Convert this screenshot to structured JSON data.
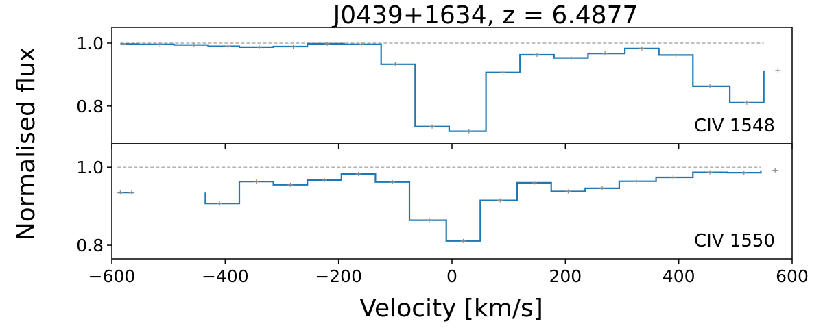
{
  "chart_data": {
    "type": "line",
    "title": "J0439+1634,   z = 6.4877",
    "xlabel": "Velocity [km/s]",
    "ylabel": "Normalised flux",
    "xlim": [
      -600,
      600
    ],
    "xticks": [
      "−600",
      "−400",
      "−200",
      "0",
      "200",
      "400",
      "600"
    ],
    "xtick_values": [
      -600,
      -400,
      -200,
      0,
      200,
      400,
      600
    ],
    "line_color": "#1f77b4",
    "error_color": "#8c8c8c",
    "reference_color": "#9a9a9a",
    "grid": false,
    "panels": [
      {
        "label": "CIV 1548",
        "ylim": [
          0.68,
          1.05
        ],
        "yticks": [
          "0.8",
          "1.0"
        ],
        "ytick_values": [
          0.8,
          1.0
        ],
        "reference_y": 1.0,
        "edges": [
          -585,
          -555,
          -490,
          -430,
          -375,
          -315,
          -255,
          -190,
          -125,
          -65,
          -5,
          60,
          120,
          180,
          240,
          305,
          365,
          425,
          490,
          550
        ],
        "x": [
          -580,
          -515,
          -455,
          -395,
          -340,
          -280,
          -220,
          -160,
          -100,
          -35,
          30,
          90,
          150,
          210,
          270,
          335,
          395,
          455,
          520,
          575
        ],
        "values": [
          0.997,
          0.996,
          0.994,
          0.99,
          0.987,
          0.989,
          0.998,
          0.996,
          0.933,
          0.735,
          0.72,
          0.907,
          0.963,
          0.953,
          0.967,
          0.983,
          0.962,
          0.863,
          0.811,
          0.913
        ]
      },
      {
        "label": "CIV 1550",
        "ylim": [
          0.765,
          1.06
        ],
        "yticks": [
          "0.8",
          "1.0"
        ],
        "ytick_values": [
          0.8,
          1.0
        ],
        "reference_y": 1.0,
        "edges": [
          -590,
          -560,
          -435,
          -375,
          -315,
          -255,
          -195,
          -135,
          -75,
          -10,
          50,
          115,
          175,
          235,
          295,
          360,
          425,
          485,
          545
        ],
        "x": [
          -585,
          -565,
          -410,
          -345,
          -285,
          -225,
          -165,
          -105,
          -40,
          20,
          85,
          145,
          205,
          265,
          325,
          390,
          455,
          515,
          570
        ],
        "values": [
          0.935,
          0.935,
          0.907,
          0.963,
          0.955,
          0.967,
          0.983,
          0.962,
          0.864,
          0.811,
          0.915,
          0.96,
          0.938,
          0.946,
          0.964,
          0.974,
          0.987,
          0.986,
          0.992
        ],
        "gaps": [
          [
            -560,
            -435
          ]
        ]
      }
    ]
  }
}
